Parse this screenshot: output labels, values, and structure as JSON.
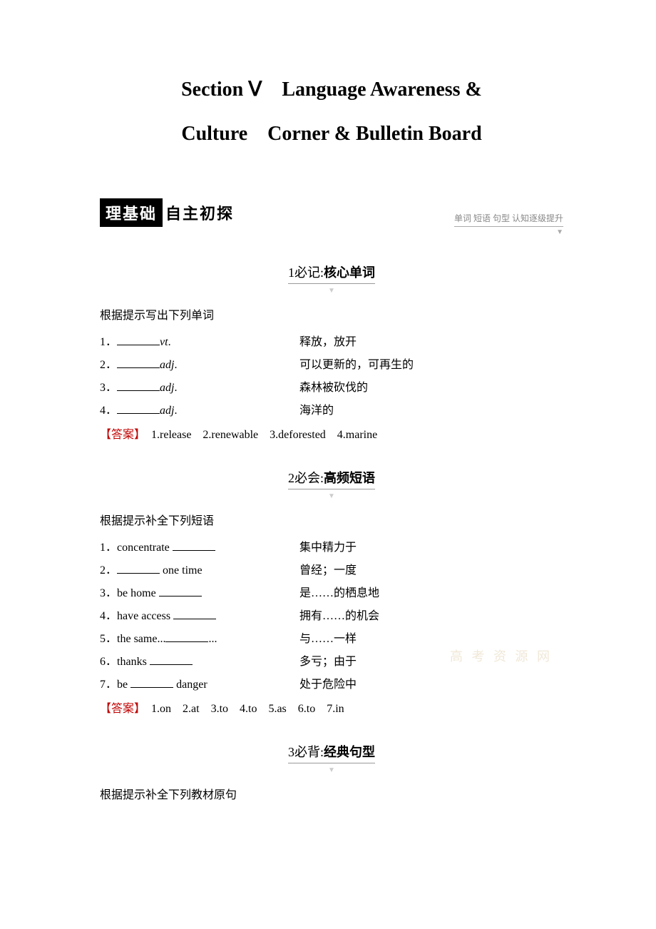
{
  "title": {
    "line1": "Section Ⅴ　Language Awareness &",
    "line2": "Culture　Corner & Bulletin Board"
  },
  "banner": {
    "black": "理基础",
    "white": "自主初探",
    "right": "单词 短语 句型  认知逐级提升"
  },
  "section1": {
    "num": "1",
    "label": "必记:",
    "bold": "核心单词",
    "instruction": "根据提示写出下列单词",
    "items": [
      {
        "num": "1．",
        "suffix_italic": "vt",
        "suffix": ".",
        "meaning": "释放，放开"
      },
      {
        "num": "2．",
        "suffix_italic": "adj",
        "suffix": ".",
        "meaning": "可以更新的，可再生的"
      },
      {
        "num": "3．",
        "suffix_italic": "adj",
        "suffix": ".",
        "meaning": "森林被砍伐的"
      },
      {
        "num": "4．",
        "suffix_italic": "adj",
        "suffix": ".",
        "meaning": "海洋的"
      }
    ],
    "answer_label": "【答案】",
    "answer": "　1.release　2.renewable　3.deforested　4.marine"
  },
  "section2": {
    "num": "2",
    "label": "必会:",
    "bold": "高频短语",
    "instruction": "根据提示补全下列短语",
    "items": [
      {
        "num": "1．",
        "pre": "concentrate ",
        "post": "",
        "meaning": "集中精力于"
      },
      {
        "num": "2．",
        "pre": "",
        "post": " one time",
        "meaning": "曾经；一度"
      },
      {
        "num": "3．",
        "pre": "be home ",
        "post": "",
        "meaning": "是……的栖息地"
      },
      {
        "num": "4．",
        "pre": "have access ",
        "post": "",
        "meaning": "拥有……的机会"
      },
      {
        "num": "5．",
        "pre": "the same...",
        "post": "...",
        "meaning": "与……一样"
      },
      {
        "num": "6．",
        "pre": "thanks ",
        "post": "",
        "meaning": "多亏；由于"
      },
      {
        "num": "7．",
        "pre": "be ",
        "post": " danger",
        "meaning": "处于危险中"
      }
    ],
    "answer_label": "【答案】",
    "answer": "　1.on　2.at　3.to　4.to　5.as　6.to　7.in"
  },
  "section3": {
    "num": "3",
    "label": "必背:",
    "bold": "经典句型",
    "instruction": "根据提示补全下列教材原句"
  },
  "watermark": "高 考 资 源 网"
}
